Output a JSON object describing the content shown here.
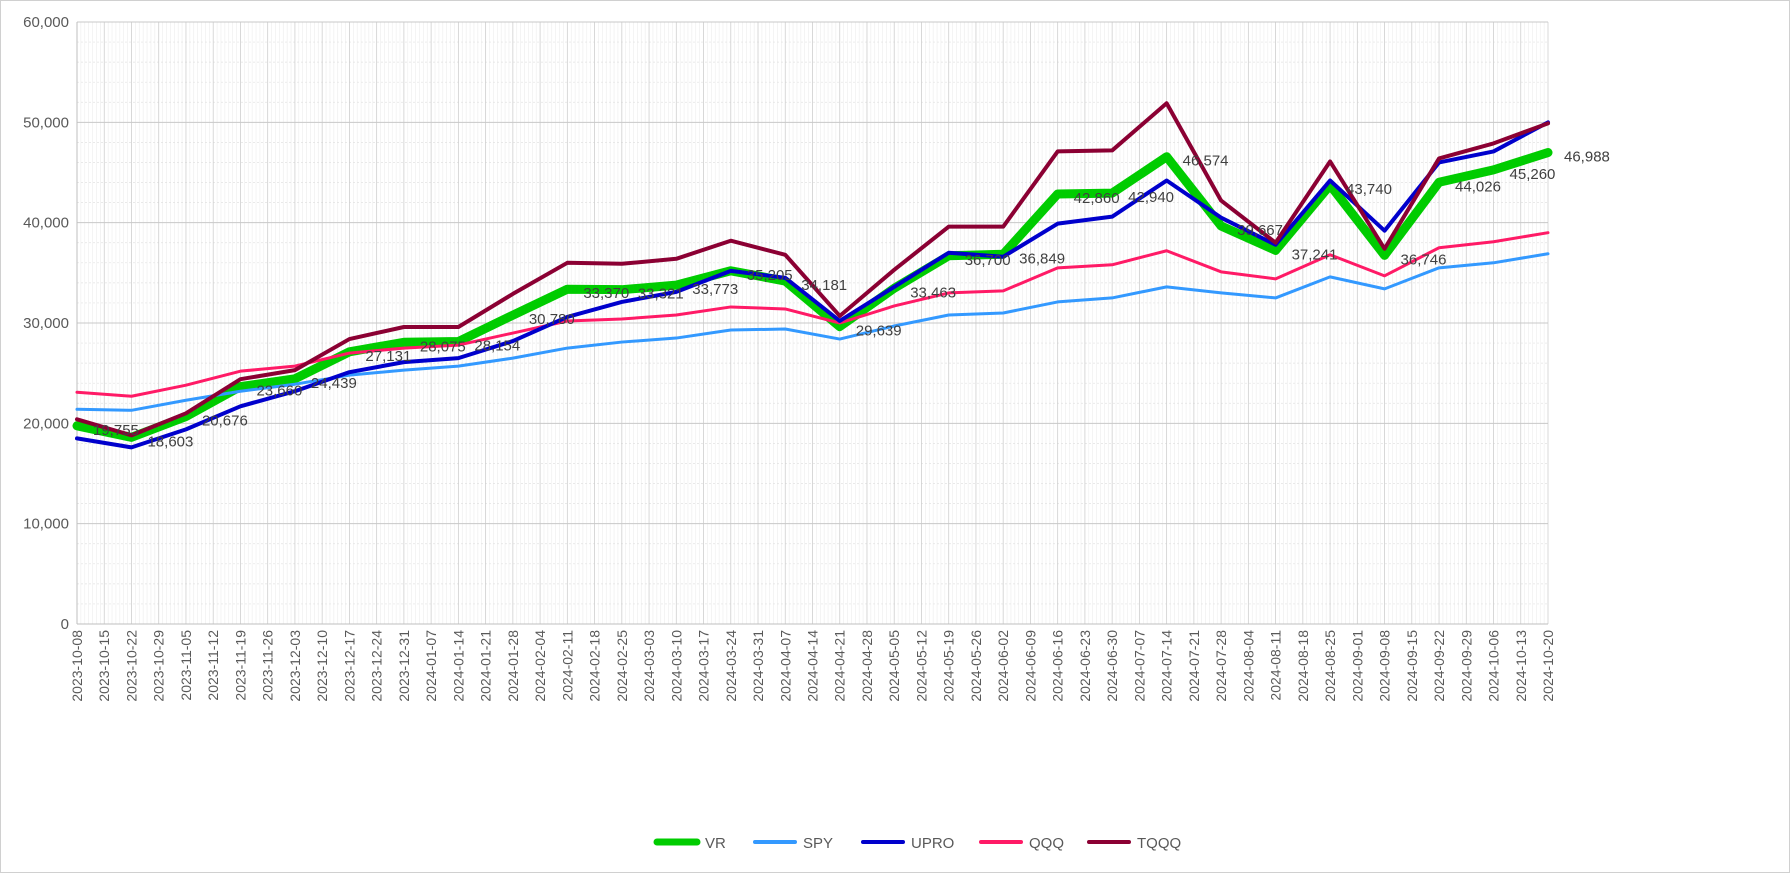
{
  "chart_data": {
    "type": "line",
    "x": [
      "2023-10-08",
      "2023-10-15",
      "2023-10-22",
      "2023-10-29",
      "2023-11-05",
      "2023-11-12",
      "2023-11-19",
      "2023-11-26",
      "2023-12-03",
      "2023-12-10",
      "2023-12-17",
      "2023-12-24",
      "2023-12-31",
      "2024-01-07",
      "2024-01-14",
      "2024-01-21",
      "2024-01-28",
      "2024-02-04",
      "2024-02-11",
      "2024-02-18",
      "2024-02-25",
      "2024-03-03",
      "2024-03-10",
      "2024-03-17",
      "2024-03-24",
      "2024-03-31",
      "2024-04-07",
      "2024-04-14",
      "2024-04-21",
      "2024-04-28",
      "2024-05-05",
      "2024-05-12",
      "2024-05-19",
      "2024-05-26",
      "2024-06-02",
      "2024-06-09",
      "2024-06-16",
      "2024-06-23",
      "2024-06-30",
      "2024-07-07",
      "2024-07-14",
      "2024-07-21",
      "2024-07-28",
      "2024-08-04",
      "2024-08-11",
      "2024-08-18",
      "2024-08-25",
      "2024-09-01",
      "2024-09-08",
      "2024-09-15",
      "2024-09-22",
      "2024-09-29",
      "2024-10-06",
      "2024-10-13",
      "2024-10-20"
    ],
    "ylim": [
      0,
      60000
    ],
    "yticks": [
      0,
      10000,
      20000,
      30000,
      40000,
      50000,
      60000
    ],
    "ytick_labels": [
      "0",
      "10,000",
      "20,000",
      "30,000",
      "40,000",
      "50,000",
      "60,000"
    ],
    "grid": true,
    "legend_position": "bottom",
    "series": [
      {
        "name": "VR",
        "color": "#00cc00",
        "width": 9,
        "points": [
          [
            "2023-10-08",
            19755
          ],
          [
            "2023-10-22",
            18603
          ],
          [
            "2023-11-05",
            20676
          ],
          [
            "2023-11-19",
            23660
          ],
          [
            "2023-12-03",
            24439
          ],
          [
            "2023-12-17",
            27131
          ],
          [
            "2023-12-31",
            28075
          ],
          [
            "2024-01-14",
            28154
          ],
          [
            "2024-01-28",
            30780
          ],
          [
            "2024-02-11",
            33370
          ],
          [
            "2024-02-25",
            33321
          ],
          [
            "2024-03-10",
            33773
          ],
          [
            "2024-03-24",
            35205
          ],
          [
            "2024-04-07",
            34181
          ],
          [
            "2024-04-21",
            29639
          ],
          [
            "2024-05-05",
            33463
          ],
          [
            "2024-05-19",
            36700
          ],
          [
            "2024-06-02",
            36849
          ],
          [
            "2024-06-16",
            42860
          ],
          [
            "2024-06-30",
            42940
          ],
          [
            "2024-07-14",
            46574
          ],
          [
            "2024-07-28",
            39667
          ],
          [
            "2024-08-11",
            37241
          ],
          [
            "2024-08-25",
            43740
          ],
          [
            "2024-09-08",
            36746
          ],
          [
            "2024-09-22",
            44026
          ],
          [
            "2024-10-06",
            45260
          ],
          [
            "2024-10-20",
            46988
          ]
        ]
      },
      {
        "name": "SPY",
        "color": "#3399ff",
        "width": 3,
        "points": [
          [
            "2023-10-08",
            21400
          ],
          [
            "2023-10-22",
            21300
          ],
          [
            "2023-11-05",
            22300
          ],
          [
            "2023-11-19",
            23200
          ],
          [
            "2023-12-03",
            23900
          ],
          [
            "2023-12-17",
            24800
          ],
          [
            "2023-12-31",
            25300
          ],
          [
            "2024-01-14",
            25700
          ],
          [
            "2024-01-28",
            26500
          ],
          [
            "2024-02-11",
            27500
          ],
          [
            "2024-02-25",
            28100
          ],
          [
            "2024-03-10",
            28500
          ],
          [
            "2024-03-24",
            29300
          ],
          [
            "2024-04-07",
            29400
          ],
          [
            "2024-04-21",
            28400
          ],
          [
            "2024-05-05",
            29700
          ],
          [
            "2024-05-19",
            30800
          ],
          [
            "2024-06-02",
            31000
          ],
          [
            "2024-06-16",
            32100
          ],
          [
            "2024-06-30",
            32500
          ],
          [
            "2024-07-14",
            33600
          ],
          [
            "2024-07-28",
            33000
          ],
          [
            "2024-08-11",
            32500
          ],
          [
            "2024-08-25",
            34600
          ],
          [
            "2024-09-08",
            33400
          ],
          [
            "2024-09-22",
            35500
          ],
          [
            "2024-10-06",
            36000
          ],
          [
            "2024-10-20",
            36900
          ]
        ]
      },
      {
        "name": "UPRO",
        "color": "#0000cc",
        "width": 4,
        "points": [
          [
            "2023-10-08",
            18500
          ],
          [
            "2023-10-22",
            17600
          ],
          [
            "2023-11-05",
            19400
          ],
          [
            "2023-11-19",
            21700
          ],
          [
            "2023-12-03",
            23200
          ],
          [
            "2023-12-17",
            25100
          ],
          [
            "2023-12-31",
            26100
          ],
          [
            "2024-01-14",
            26500
          ],
          [
            "2024-01-28",
            28200
          ],
          [
            "2024-02-11",
            30600
          ],
          [
            "2024-02-25",
            32100
          ],
          [
            "2024-03-10",
            33100
          ],
          [
            "2024-03-24",
            35200
          ],
          [
            "2024-04-07",
            34500
          ],
          [
            "2024-04-21",
            30200
          ],
          [
            "2024-05-05",
            33600
          ],
          [
            "2024-05-19",
            37000
          ],
          [
            "2024-06-02",
            36600
          ],
          [
            "2024-06-16",
            39900
          ],
          [
            "2024-06-30",
            40600
          ],
          [
            "2024-07-14",
            44200
          ],
          [
            "2024-07-28",
            40500
          ],
          [
            "2024-08-11",
            37800
          ],
          [
            "2024-08-25",
            44200
          ],
          [
            "2024-09-08",
            39200
          ],
          [
            "2024-09-22",
            46000
          ],
          [
            "2024-10-06",
            47100
          ],
          [
            "2024-10-20",
            50000
          ]
        ]
      },
      {
        "name": "QQQ",
        "color": "#ff1a66",
        "width": 3,
        "points": [
          [
            "2023-10-08",
            23100
          ],
          [
            "2023-10-22",
            22700
          ],
          [
            "2023-11-05",
            23800
          ],
          [
            "2023-11-19",
            25200
          ],
          [
            "2023-12-03",
            25700
          ],
          [
            "2023-12-17",
            27000
          ],
          [
            "2023-12-31",
            27500
          ],
          [
            "2024-01-14",
            27800
          ],
          [
            "2024-01-28",
            29000
          ],
          [
            "2024-02-11",
            30200
          ],
          [
            "2024-02-25",
            30400
          ],
          [
            "2024-03-10",
            30800
          ],
          [
            "2024-03-24",
            31600
          ],
          [
            "2024-04-07",
            31400
          ],
          [
            "2024-04-21",
            30000
          ],
          [
            "2024-05-05",
            31700
          ],
          [
            "2024-05-19",
            33000
          ],
          [
            "2024-06-02",
            33200
          ],
          [
            "2024-06-16",
            35500
          ],
          [
            "2024-06-30",
            35800
          ],
          [
            "2024-07-14",
            37200
          ],
          [
            "2024-07-28",
            35100
          ],
          [
            "2024-08-11",
            34400
          ],
          [
            "2024-08-25",
            36800
          ],
          [
            "2024-09-08",
            34700
          ],
          [
            "2024-09-22",
            37500
          ],
          [
            "2024-10-06",
            38100
          ],
          [
            "2024-10-20",
            39000
          ]
        ]
      },
      {
        "name": "TQQQ",
        "color": "#8b0033",
        "width": 4,
        "points": [
          [
            "2023-10-08",
            20400
          ],
          [
            "2023-10-22",
            18800
          ],
          [
            "2023-11-05",
            21000
          ],
          [
            "2023-11-19",
            24400
          ],
          [
            "2023-12-03",
            25300
          ],
          [
            "2023-12-17",
            28400
          ],
          [
            "2023-12-31",
            29600
          ],
          [
            "2024-01-14",
            29600
          ],
          [
            "2024-01-28",
            32900
          ],
          [
            "2024-02-11",
            36000
          ],
          [
            "2024-02-25",
            35900
          ],
          [
            "2024-03-10",
            36400
          ],
          [
            "2024-03-24",
            38200
          ],
          [
            "2024-04-07",
            36800
          ],
          [
            "2024-04-21",
            30700
          ],
          [
            "2024-05-05",
            35300
          ],
          [
            "2024-05-19",
            39600
          ],
          [
            "2024-06-02",
            39600
          ],
          [
            "2024-06-16",
            47100
          ],
          [
            "2024-06-30",
            47200
          ],
          [
            "2024-07-14",
            51900
          ],
          [
            "2024-07-28",
            42200
          ],
          [
            "2024-08-11",
            38000
          ],
          [
            "2024-08-25",
            46100
          ],
          [
            "2024-09-08",
            37400
          ],
          [
            "2024-09-22",
            46400
          ],
          [
            "2024-10-06",
            47900
          ],
          [
            "2024-10-20",
            49900
          ]
        ]
      }
    ],
    "data_labels": [
      {
        "x": "2023-10-08",
        "y": 19755,
        "text": "19,755"
      },
      {
        "x": "2023-10-22",
        "y": 18603,
        "text": "18,603"
      },
      {
        "x": "2023-11-05",
        "y": 20676,
        "text": "20,676"
      },
      {
        "x": "2023-11-19",
        "y": 23660,
        "text": "23,660"
      },
      {
        "x": "2023-12-03",
        "y": 24439,
        "text": "24,439"
      },
      {
        "x": "2023-12-17",
        "y": 27131,
        "text": "27,131"
      },
      {
        "x": "2023-12-31",
        "y": 28075,
        "text": "28,075"
      },
      {
        "x": "2024-01-14",
        "y": 28154,
        "text": "28,154"
      },
      {
        "x": "2024-01-28",
        "y": 30780,
        "text": "30,780"
      },
      {
        "x": "2024-02-11",
        "y": 33370,
        "text": "33,370"
      },
      {
        "x": "2024-02-25",
        "y": 33321,
        "text": "33,321"
      },
      {
        "x": "2024-03-10",
        "y": 33773,
        "text": "33,773"
      },
      {
        "x": "2024-03-24",
        "y": 35205,
        "text": "35,205"
      },
      {
        "x": "2024-04-07",
        "y": 34181,
        "text": "34,181"
      },
      {
        "x": "2024-04-21",
        "y": 29639,
        "text": "29,639"
      },
      {
        "x": "2024-05-05",
        "y": 33463,
        "text": "33,463"
      },
      {
        "x": "2024-05-19",
        "y": 36700,
        "text": "36,700"
      },
      {
        "x": "2024-06-02",
        "y": 36849,
        "text": "36,849"
      },
      {
        "x": "2024-06-16",
        "y": 42860,
        "text": "42,860"
      },
      {
        "x": "2024-06-30",
        "y": 42940,
        "text": "42,940"
      },
      {
        "x": "2024-07-14",
        "y": 46574,
        "text": "46,574"
      },
      {
        "x": "2024-07-28",
        "y": 39667,
        "text": "39,667"
      },
      {
        "x": "2024-08-11",
        "y": 37241,
        "text": "37,241"
      },
      {
        "x": "2024-08-25",
        "y": 43740,
        "text": "43,740"
      },
      {
        "x": "2024-09-08",
        "y": 36746,
        "text": "36,746"
      },
      {
        "x": "2024-09-22",
        "y": 44026,
        "text": "44,026"
      },
      {
        "x": "2024-10-06",
        "y": 45260,
        "text": "45,260"
      },
      {
        "x": "2024-10-20",
        "y": 46988,
        "text": "46,988"
      }
    ]
  }
}
